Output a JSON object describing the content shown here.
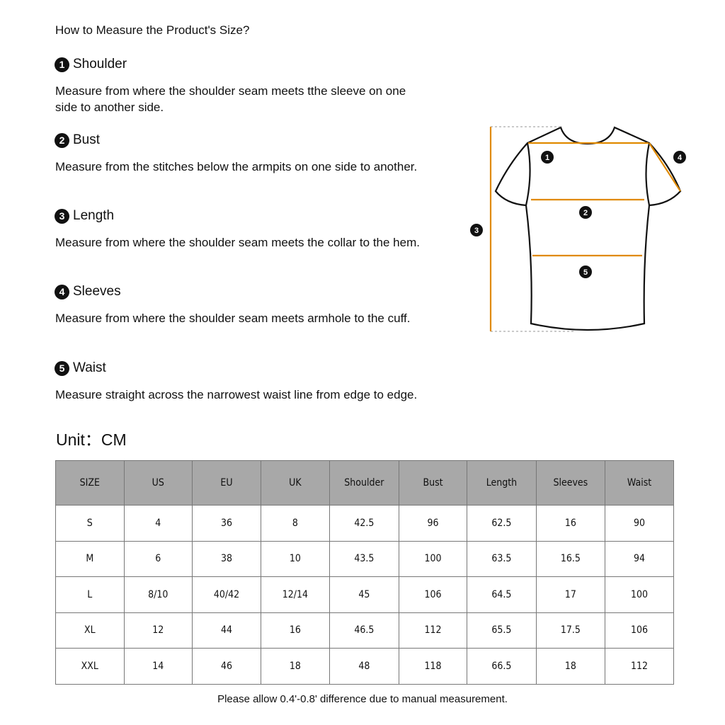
{
  "title": "How to Measure the Product's Size?",
  "sections": [
    {
      "num": "1",
      "name": "Shoulder",
      "desc": "Measure from where the shoulder seam meets tthe sleeve on one side to another side."
    },
    {
      "num": "2",
      "name": "Bust",
      "desc": "Measure from the stitches below the armpits on one side to another."
    },
    {
      "num": "3",
      "name": "Length",
      "desc": "Measure from where the shoulder seam meets the collar to the hem."
    },
    {
      "num": "4",
      "name": "Sleeves",
      "desc": "Measure from where the shoulder seam meets armhole to the cuff."
    },
    {
      "num": "5",
      "name": "Waist",
      "desc": "Measure straight across the narrowest waist line from edge to edge."
    }
  ],
  "unit": "Unit：CM",
  "diagram": {
    "labels": [
      "1",
      "2",
      "3",
      "4",
      "5"
    ],
    "line_color": "#e08a00"
  },
  "table": {
    "headers": [
      "SIZE",
      "US",
      "EU",
      "UK",
      "Shoulder",
      "Bust",
      "Length",
      "Sleeves",
      "Waist"
    ],
    "rows": [
      [
        "S",
        "4",
        "36",
        "8",
        "42.5",
        "96",
        "62.5",
        "16",
        "90"
      ],
      [
        "M",
        "6",
        "38",
        "10",
        "43.5",
        "100",
        "63.5",
        "16.5",
        "94"
      ],
      [
        "L",
        "8/10",
        "40/42",
        "12/14",
        "45",
        "106",
        "64.5",
        "17",
        "100"
      ],
      [
        "XL",
        "12",
        "44",
        "16",
        "46.5",
        "112",
        "65.5",
        "17.5",
        "106"
      ],
      [
        "XXL",
        "14",
        "46",
        "18",
        "48",
        "118",
        "66.5",
        "18",
        "112"
      ]
    ],
    "header_color": "#a8a8a8"
  },
  "footer": "Please allow 0.4'-0.8' difference due to manual measurement."
}
